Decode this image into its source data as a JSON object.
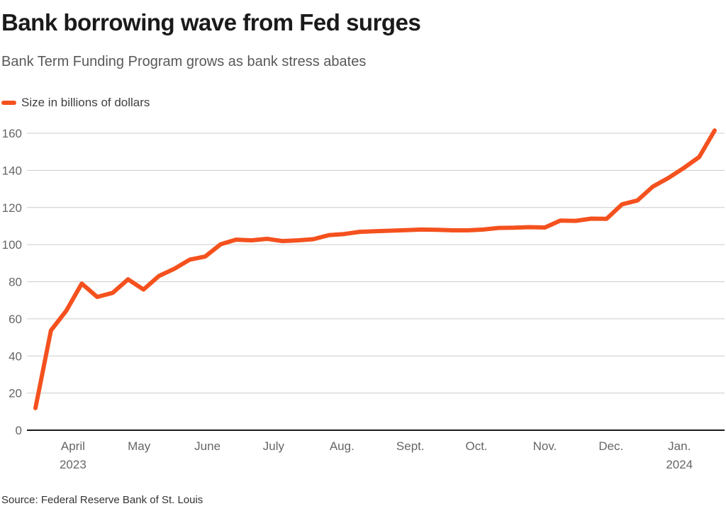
{
  "header": {
    "title": "Bank borrowing wave from Fed surges",
    "subtitle": "Bank Term Funding Program grows as bank stress abates"
  },
  "legend": {
    "label": "Size in billions of dollars"
  },
  "source": "Source: Federal Reserve Bank of St. Louis",
  "colors": {
    "background": "#FFFFFF",
    "line": "#F4511E",
    "grid": "#CCCCCC",
    "axis": "#1A1A1A",
    "tick_label": "#666666",
    "title": "#1A1A1A",
    "subtitle": "#595959",
    "legend_label": "#404040",
    "source": "#333333"
  },
  "chart_data": {
    "type": "line",
    "title": "Bank borrowing wave from Fed surges",
    "subtitle": "Bank Term Funding Program grows as bank stress abates",
    "series_name": "Size in billions of dollars",
    "unit": "billions of US dollars",
    "grid": "horizontal",
    "legend_position": "top-left",
    "ylim": [
      0,
      160
    ],
    "y_ticks": [
      0,
      20,
      40,
      60,
      80,
      100,
      120,
      140,
      160
    ],
    "x_range": [
      "2023-03-15",
      "2024-01-17"
    ],
    "x_ticks": [
      {
        "label": "April",
        "sublabel": "2023",
        "date": "2023-04-01"
      },
      {
        "label": "May",
        "date": "2023-05-01"
      },
      {
        "label": "June",
        "date": "2023-06-01"
      },
      {
        "label": "July",
        "date": "2023-07-01"
      },
      {
        "label": "Aug.",
        "date": "2023-08-01"
      },
      {
        "label": "Sept.",
        "date": "2023-09-01"
      },
      {
        "label": "Oct.",
        "date": "2023-10-01"
      },
      {
        "label": "Nov.",
        "date": "2023-11-01"
      },
      {
        "label": "Dec.",
        "date": "2023-12-01"
      },
      {
        "label": "Jan.",
        "sublabel": "2024",
        "date": "2024-01-01"
      }
    ],
    "x": [
      "2023-03-15",
      "2023-03-22",
      "2023-03-29",
      "2023-04-05",
      "2023-04-12",
      "2023-04-19",
      "2023-04-26",
      "2023-05-03",
      "2023-05-10",
      "2023-05-17",
      "2023-05-24",
      "2023-05-31",
      "2023-06-07",
      "2023-06-14",
      "2023-06-21",
      "2023-06-28",
      "2023-07-05",
      "2023-07-12",
      "2023-07-19",
      "2023-07-26",
      "2023-08-02",
      "2023-08-09",
      "2023-08-16",
      "2023-08-23",
      "2023-08-30",
      "2023-09-06",
      "2023-09-13",
      "2023-09-20",
      "2023-09-27",
      "2023-10-04",
      "2023-10-11",
      "2023-10-18",
      "2023-10-25",
      "2023-11-01",
      "2023-11-08",
      "2023-11-15",
      "2023-11-22",
      "2023-11-29",
      "2023-12-06",
      "2023-12-13",
      "2023-12-20",
      "2023-12-27",
      "2024-01-03",
      "2024-01-10",
      "2024-01-17"
    ],
    "values": [
      11.9,
      53.7,
      64.4,
      79.0,
      71.8,
      74.0,
      81.3,
      75.8,
      83.1,
      87.0,
      91.9,
      93.6,
      100.2,
      102.7,
      102.3,
      103.1,
      101.9,
      102.3,
      102.9,
      105.1,
      105.7,
      106.9,
      107.2,
      107.5,
      107.8,
      108.1,
      108.0,
      107.7,
      107.7,
      108.1,
      109.0,
      109.1,
      109.4,
      109.2,
      112.9,
      112.8,
      114.0,
      113.9,
      121.7,
      123.8,
      131.3,
      135.9,
      141.3,
      147.2,
      161.5
    ]
  }
}
